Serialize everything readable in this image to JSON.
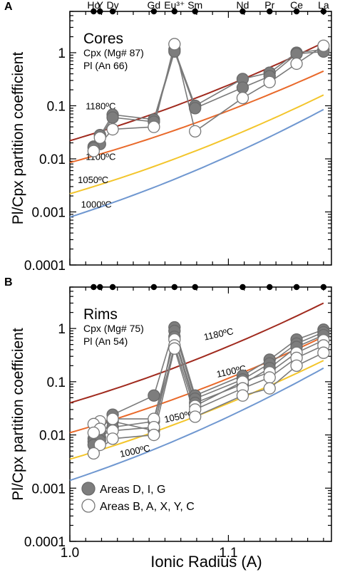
{
  "figure": {
    "xlabel": "Ionic Radius (A)",
    "x_ticks": [
      1.0,
      1.1
    ],
    "x_tick_labels": [
      "1.0",
      "1.1"
    ],
    "xlim": [
      1.0,
      1.165
    ],
    "ylabel": "Pl/Cpx partition coefficient",
    "ylim": [
      0.0001,
      6
    ],
    "y_ticks": [
      0.0001,
      0.001,
      0.01,
      0.1,
      1
    ],
    "y_tick_labels": [
      "0.0001",
      "0.001",
      "0.01",
      "0.1",
      "1"
    ],
    "y_scale": "log"
  },
  "elements": [
    {
      "label": "Y",
      "r": 1.019
    },
    {
      "label": "Ho",
      "r": 1.015
    },
    {
      "label": "Dy",
      "r": 1.027
    },
    {
      "label": "Gd",
      "r": 1.053
    },
    {
      "label": "Eu³⁺",
      "r": 1.066
    },
    {
      "label": "Sm",
      "r": 1.079
    },
    {
      "label": "Nd",
      "r": 1.109
    },
    {
      "label": "Pr",
      "r": 1.126
    },
    {
      "label": "Ce",
      "r": 1.143
    },
    {
      "label": "La",
      "r": 1.16
    }
  ],
  "chart_data": [
    {
      "type": "line",
      "panel_letter": "A",
      "panel_title": "Cores",
      "panel_subtitle_1": "Cpx (Mg# 87)",
      "panel_subtitle_2": "Pl (An 66)",
      "x_axis": "ionic radius",
      "y_scale": "log",
      "isotherms": [
        {
          "name": "1180ºC",
          "color": "#a02a1e",
          "x": [
            1.0,
            1.16
          ],
          "y": [
            0.022,
            1.55
          ]
        },
        {
          "name": "1100ºC",
          "color": "#e9692a",
          "x": [
            1.0,
            1.16
          ],
          "y": [
            0.0085,
            0.45
          ]
        },
        {
          "name": "1050ºC",
          "color": "#f3c52b",
          "x": [
            1.0,
            1.16
          ],
          "y": [
            0.0022,
            0.16
          ]
        },
        {
          "name": "1000ºC",
          "color": "#6f97d0",
          "x": [
            1.0,
            1.16
          ],
          "y": [
            0.0008,
            0.085
          ]
        }
      ],
      "series": [
        {
          "marker": "filled",
          "x": [
            1.019,
            1.015,
            1.027,
            1.053,
            1.066,
            1.079,
            1.109,
            1.126,
            1.143,
            1.16
          ],
          "y": [
            0.028,
            0.017,
            0.068,
            0.055,
            1.15,
            0.1,
            0.32,
            0.42,
            1.0,
            1.15
          ]
        },
        {
          "marker": "filled",
          "x": [
            1.019,
            1.015,
            1.027,
            1.053,
            1.066,
            1.079,
            1.109,
            1.126,
            1.143,
            1.16
          ],
          "y": [
            0.019,
            0.016,
            0.06,
            0.05,
            1.05,
            0.09,
            0.22,
            0.36,
            0.95,
            1.05
          ]
        },
        {
          "marker": "open",
          "x": [
            1.019,
            1.015,
            1.027,
            1.053,
            1.066,
            1.079,
            1.109,
            1.126,
            1.143,
            1.16
          ],
          "y": [
            0.025,
            0.014,
            0.036,
            0.04,
            1.45,
            0.033,
            0.14,
            0.28,
            0.62,
            1.35
          ]
        }
      ]
    },
    {
      "type": "line",
      "panel_letter": "B",
      "panel_title": "Rims",
      "panel_subtitle_1": "Cpx (Mg# 75)",
      "panel_subtitle_2": "Pl (An 54)",
      "x_axis": "ionic radius",
      "y_scale": "log",
      "isotherms": [
        {
          "name": "1180ºC",
          "color": "#a02a1e",
          "x": [
            1.0,
            1.16
          ],
          "y": [
            0.04,
            3.0
          ]
        },
        {
          "name": "1100ºC",
          "color": "#e9692a",
          "x": [
            1.0,
            1.16
          ],
          "y": [
            0.011,
            0.7
          ]
        },
        {
          "name": "1050ºC",
          "color": "#f3c52b",
          "x": [
            1.0,
            1.16
          ],
          "y": [
            0.0035,
            0.25
          ]
        },
        {
          "name": "1000ºC",
          "color": "#6f97d0",
          "x": [
            1.0,
            1.16
          ],
          "y": [
            0.0014,
            0.18
          ]
        }
      ],
      "legend": [
        {
          "marker": "filled",
          "label": "Areas D, I, G"
        },
        {
          "marker": "open",
          "label": "Areas B, A, X, Y, C"
        }
      ],
      "series": [
        {
          "marker": "filled",
          "x": [
            1.019,
            1.015,
            1.027,
            1.053,
            1.066,
            1.079,
            1.109,
            1.126,
            1.143,
            1.16
          ],
          "y": [
            0.012,
            0.0085,
            0.024,
            0.055,
            1.05,
            0.055,
            0.13,
            0.26,
            0.62,
            0.95
          ]
        },
        {
          "marker": "filled",
          "x": [
            1.019,
            1.015,
            1.027,
            1.053,
            1.066,
            1.079,
            1.109,
            1.126,
            1.143,
            1.16
          ],
          "y": [
            0.009,
            0.0075,
            0.018,
            0.012,
            0.9,
            0.048,
            0.11,
            0.22,
            0.52,
            0.85
          ]
        },
        {
          "marker": "filled",
          "x": [
            1.019,
            1.015,
            1.027,
            1.053,
            1.066,
            1.079,
            1.109,
            1.126,
            1.143,
            1.16
          ],
          "y": [
            0.0078,
            0.0065,
            0.014,
            0.018,
            0.7,
            0.04,
            0.09,
            0.18,
            0.45,
            0.75
          ]
        },
        {
          "marker": "open",
          "x": [
            1.019,
            1.015,
            1.027,
            1.053,
            1.066,
            1.079,
            1.109,
            1.126,
            1.143,
            1.16
          ],
          "y": [
            0.018,
            0.016,
            0.02,
            0.02,
            0.62,
            0.035,
            0.1,
            0.15,
            0.35,
            0.6
          ]
        },
        {
          "marker": "open",
          "x": [
            1.019,
            1.015,
            1.027,
            1.053,
            1.066,
            1.079,
            1.109,
            1.126,
            1.143,
            1.16
          ],
          "y": [
            0.013,
            0.011,
            0.012,
            0.014,
            0.48,
            0.03,
            0.075,
            0.12,
            0.28,
            0.48
          ]
        },
        {
          "marker": "open",
          "x": [
            1.019,
            1.015,
            1.027,
            1.053,
            1.066,
            1.079,
            1.109,
            1.126,
            1.143,
            1.16
          ],
          "y": [
            0.0065,
            0.0045,
            0.0085,
            0.01,
            0.42,
            0.022,
            0.055,
            0.075,
            0.2,
            0.35
          ]
        }
      ]
    }
  ]
}
